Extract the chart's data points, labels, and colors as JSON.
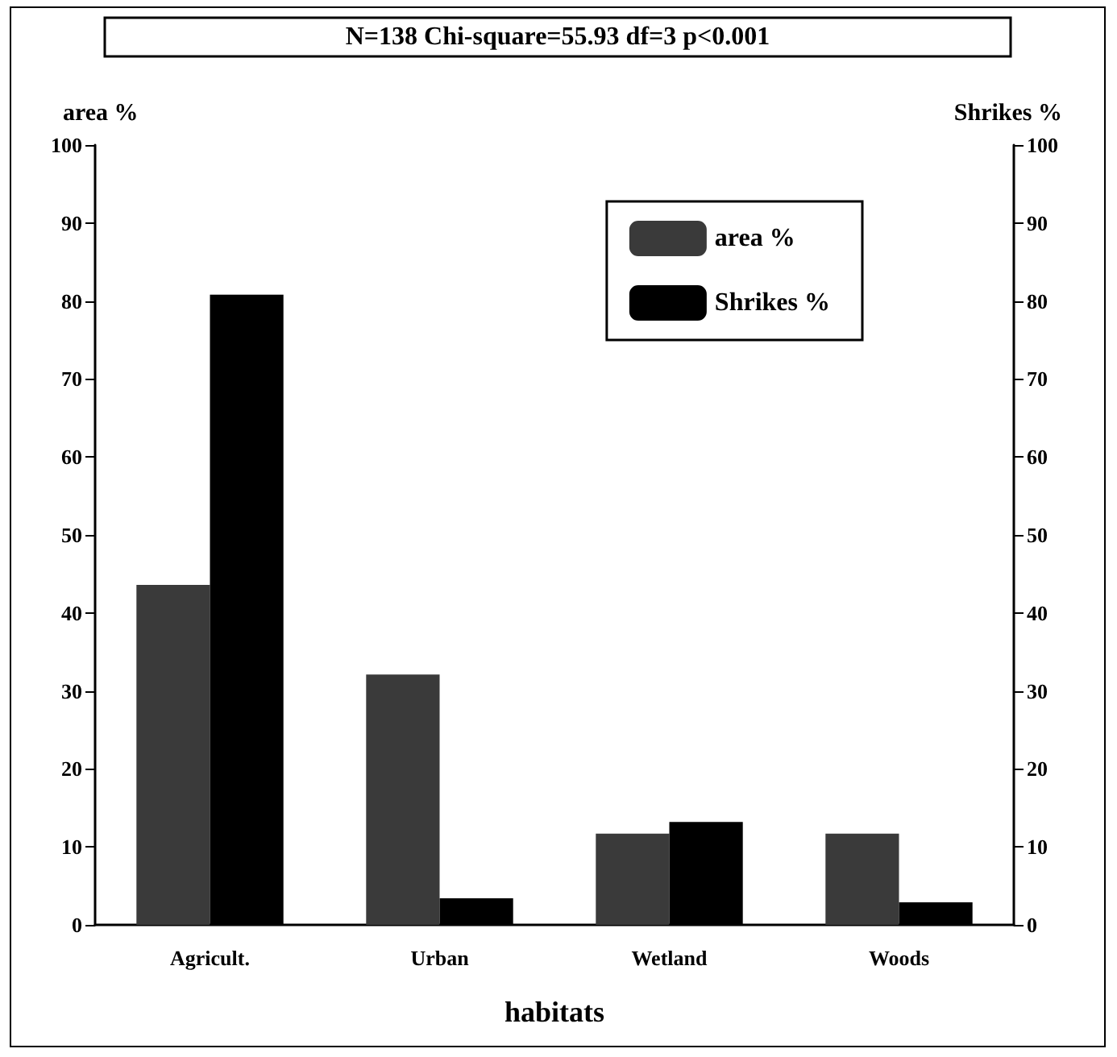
{
  "chart_data": {
    "type": "bar",
    "title": "N=138 Chi-square=55.93 df=3 p<0.001",
    "xlabel": "habitats",
    "ylabel": "area %",
    "y2label": "Shrikes %",
    "categories": [
      "Agricult.",
      "Urban",
      "Wetland",
      "Woods"
    ],
    "series": [
      {
        "name": "area %",
        "color": "#3a3a3a",
        "values": [
          43.6,
          32.1,
          11.7,
          11.7
        ]
      },
      {
        "name": "Shrikes %",
        "color": "#000000",
        "values": [
          80.8,
          3.4,
          13.2,
          2.9
        ]
      }
    ],
    "ylim": [
      0,
      100
    ],
    "yticks": [
      0,
      10,
      20,
      30,
      40,
      50,
      60,
      70,
      80,
      90,
      100
    ],
    "y2lim": [
      0,
      100
    ],
    "y2ticks": [
      0,
      10,
      20,
      30,
      40,
      50,
      60,
      70,
      80,
      90,
      100
    ],
    "grid": false,
    "legend": "top right"
  }
}
